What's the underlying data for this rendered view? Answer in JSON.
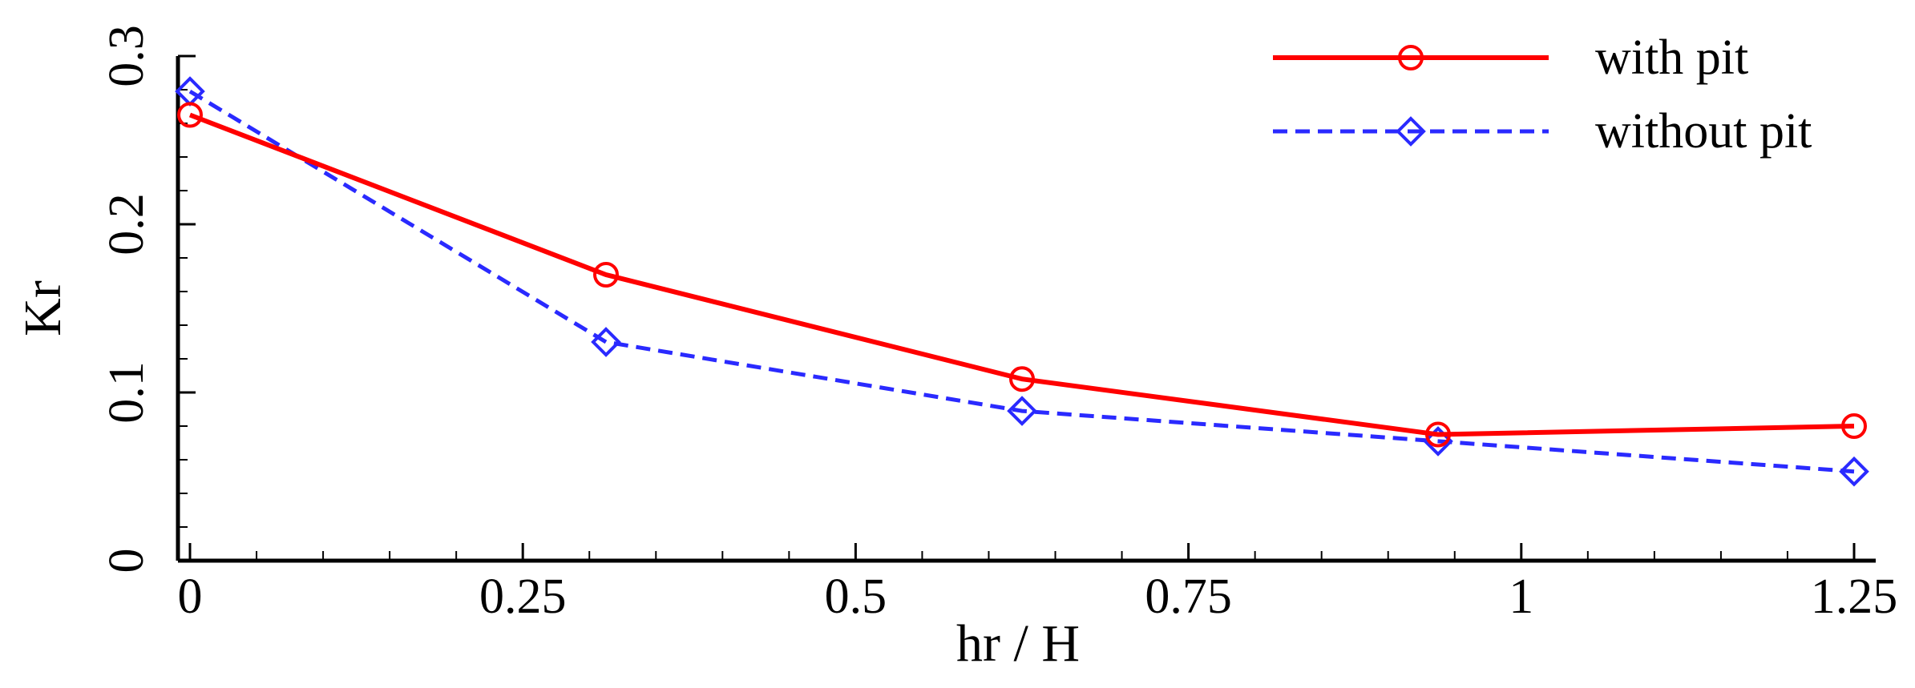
{
  "chart_data": {
    "type": "line",
    "title": "",
    "xlabel": "hr / H",
    "ylabel": "Kr",
    "xlim": [
      -0.01,
      1.25
    ],
    "ylim": [
      0,
      0.3
    ],
    "xticks": [
      0,
      0.25,
      0.5,
      0.75,
      1,
      1.25
    ],
    "xtick_labels": [
      "0",
      "0.25",
      "0.5",
      "0.75",
      "1",
      "1.25"
    ],
    "yticks": [
      0,
      0.1,
      0.2,
      0.3
    ],
    "ytick_labels": [
      "0",
      "0.1",
      "0.2",
      "0.3"
    ],
    "grid": false,
    "legend_position": "top-right",
    "x": [
      0,
      0.3125,
      0.625,
      0.9375,
      1.25
    ],
    "series": [
      {
        "name": "with pit",
        "values": [
          0.265,
          0.17,
          0.108,
          0.075,
          0.08
        ],
        "color": "#ff0000",
        "marker": "circle",
        "line_style": "solid"
      },
      {
        "name": "without pit",
        "values": [
          0.279,
          0.13,
          0.089,
          0.071,
          0.053
        ],
        "color": "#2a2aff",
        "marker": "diamond",
        "line_style": "dashed"
      }
    ]
  }
}
